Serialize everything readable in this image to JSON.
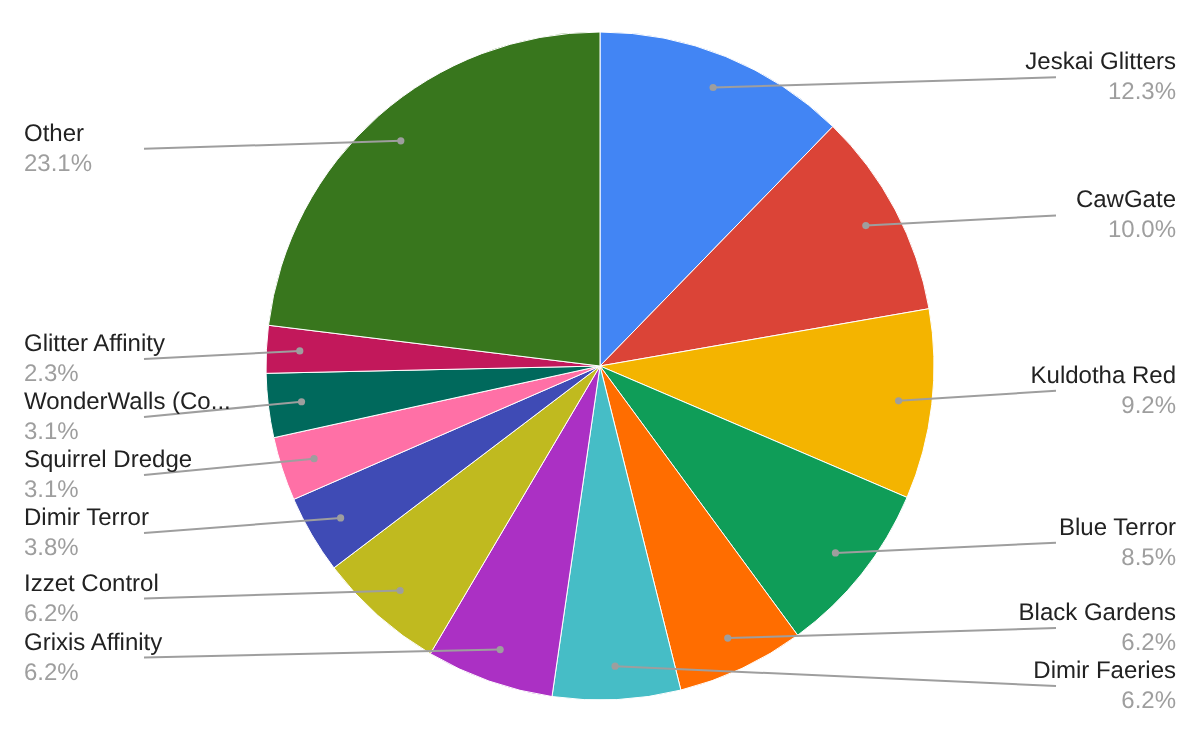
{
  "chart_data": {
    "type": "pie",
    "categories": [
      "Jeskai Glitters",
      "CawGate",
      "Kuldotha Red",
      "Blue Terror",
      "Black Gardens",
      "Dimir Faeries",
      "Grixis Affinity",
      "Izzet Control",
      "Dimir Terror",
      "Squirrel Dredge",
      "WonderWalls (Co...",
      "Glitter Affinity",
      "Other"
    ],
    "values": [
      12.3,
      10.0,
      9.2,
      8.5,
      6.2,
      6.2,
      6.2,
      6.2,
      3.8,
      3.1,
      3.1,
      2.3,
      23.1
    ],
    "value_labels": [
      "12.3%",
      "10.0%",
      "9.2%",
      "8.5%",
      "6.2%",
      "6.2%",
      "6.2%",
      "6.2%",
      "3.8%",
      "3.1%",
      "3.1%",
      "2.3%",
      "23.1%"
    ],
    "colors": [
      "#4285f4",
      "#db4437",
      "#f4b400",
      "#0f9d58",
      "#ff6d00",
      "#46bdc6",
      "#ab30c4",
      "#c0ba1f",
      "#3f4bb5",
      "#ff70a6",
      "#00695c",
      "#c2185b",
      "#38761d"
    ]
  }
}
